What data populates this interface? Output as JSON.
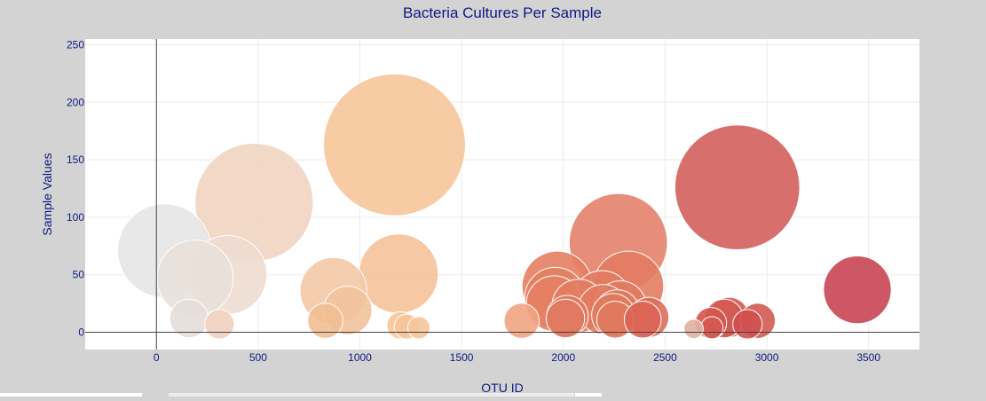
{
  "chart_data": {
    "type": "scatter",
    "title": "Bacteria Cultures Per Sample",
    "xlabel": "OTU ID",
    "ylabel": "Sample Values",
    "xlim": [
      -350,
      3750
    ],
    "ylim": [
      -15,
      255
    ],
    "xticks": [
      0,
      500,
      1000,
      1500,
      2000,
      2500,
      3000,
      3500
    ],
    "yticks": [
      0,
      50,
      100,
      150,
      200,
      250
    ],
    "grid": true,
    "legend": "none",
    "colorscale": "Earth",
    "x": [
      40,
      190,
      350,
      480,
      870,
      940,
      1170,
      1190,
      1795,
      1970,
      1960,
      1955,
      2010,
      2020,
      2075,
      2190,
      2195,
      2245,
      2255,
      2270,
      2280,
      2320,
      2265,
      2390,
      2420,
      2725,
      2790,
      2815,
      2905,
      2955,
      2855,
      3445,
      160,
      310,
      830,
      1200,
      1230,
      1290,
      2640,
      2730
    ],
    "y": [
      71,
      47,
      50,
      113,
      36,
      19,
      163,
      51,
      10,
      40,
      30,
      25,
      12,
      14,
      23,
      28,
      20,
      15,
      11,
      78,
      22,
      40,
      17,
      11,
      13,
      8,
      12,
      13,
      7,
      10,
      126,
      37,
      12,
      7,
      10,
      6,
      5,
      4,
      3,
      4
    ],
    "colors": [
      "#e6e6e6",
      "#e8e0da",
      "#eedbcf",
      "#f1d4c1",
      "#f4c9a6",
      "#f2c29a",
      "#f6c59a",
      "#f6c29a",
      "#f1a483",
      "#e47e63",
      "#e48062",
      "#e48162",
      "#e07a60",
      "#e07a60",
      "#e27c61",
      "#e27c61",
      "#e27b60",
      "#e07a5f",
      "#e07a5f",
      "#e3826c",
      "#e07a60",
      "#e27c62",
      "#e07a5f",
      "#dc6455",
      "#dc6e5c",
      "#d5554d",
      "#d45a52",
      "#d35a52",
      "#d15050",
      "#d35a52",
      "#d3605d",
      "#c84553",
      "#e6ddd8",
      "#f0d2c0",
      "#f2bf95",
      "#f6c59a",
      "#f6c59a",
      "#f6c59a",
      "#e0b0a0",
      "#d45a52"
    ]
  }
}
